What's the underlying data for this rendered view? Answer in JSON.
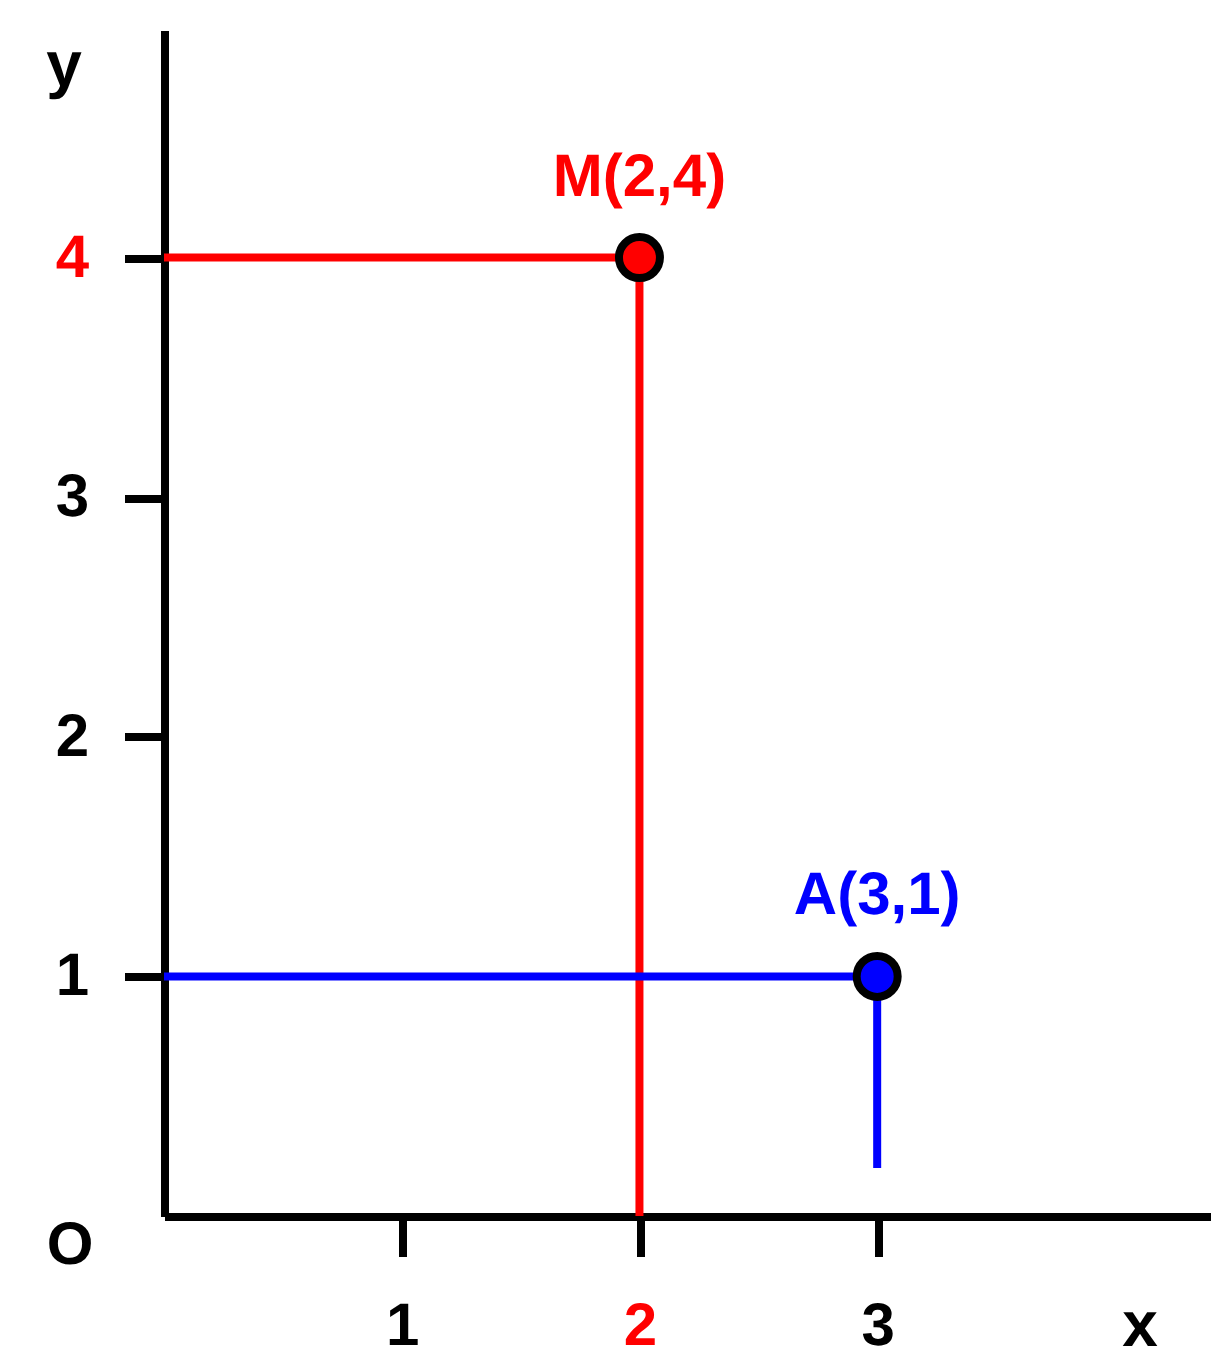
{
  "chart_data": {
    "type": "scatter",
    "series": [
      {
        "type": "line",
        "marker": "none",
        "color": "#ff0000",
        "x": [
          0,
          2,
          2
        ],
        "values": [
          4,
          4,
          0
        ]
      },
      {
        "type": "line",
        "marker": "none",
        "color": "#0000ff",
        "x": [
          0,
          3,
          3
        ],
        "values": [
          1,
          1,
          0.2
        ]
      },
      {
        "color": "#ff0000",
        "x": [
          2
        ],
        "values": [
          4
        ]
      },
      {
        "color": "#0000ff",
        "x": [
          3
        ],
        "values": [
          1
        ]
      }
    ],
    "xlabel": "x",
    "ylabel": "y",
    "xlim": [
      0,
      4.4
    ],
    "ylim": [
      0,
      4.95
    ],
    "xticks": [
      1,
      2,
      3
    ],
    "yticks": [
      1,
      2,
      3,
      4
    ],
    "annotations": [
      {
        "text": "M(2,4)",
        "x": 2,
        "y": 4
      },
      {
        "text": "A(3,1)",
        "x": 3,
        "y": 1
      },
      "O"
    ],
    "marker": "circle",
    "grid": false
  }
}
